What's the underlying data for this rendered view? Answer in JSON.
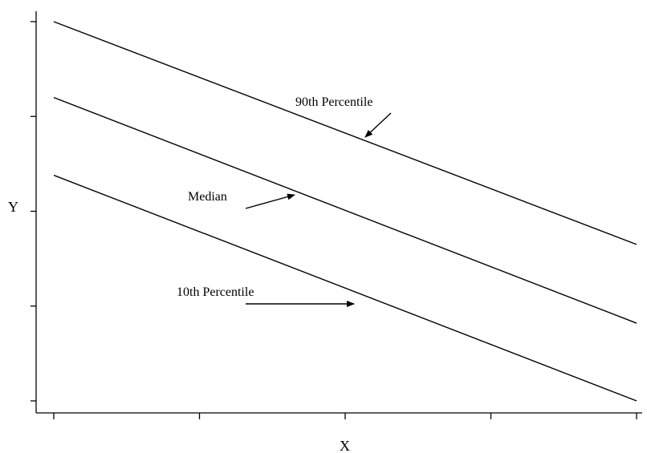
{
  "chart_data": {
    "type": "line",
    "title": "",
    "xlabel": "X",
    "ylabel": "Y",
    "xlim": [
      0,
      4
    ],
    "ylim": [
      0,
      4
    ],
    "x_ticks": [
      0,
      1,
      2,
      3,
      4
    ],
    "y_ticks": [
      0,
      1,
      2,
      3,
      4
    ],
    "grid": false,
    "legend": "none",
    "series": [
      {
        "name": "90th Percentile",
        "x": [
          0,
          4
        ],
        "y": [
          4.0,
          1.65
        ]
      },
      {
        "name": "Median",
        "x": [
          0,
          4
        ],
        "y": [
          3.2,
          0.82
        ]
      },
      {
        "name": "10th Percentile",
        "x": [
          0,
          4
        ],
        "y": [
          2.38,
          0.0
        ]
      }
    ]
  }
}
